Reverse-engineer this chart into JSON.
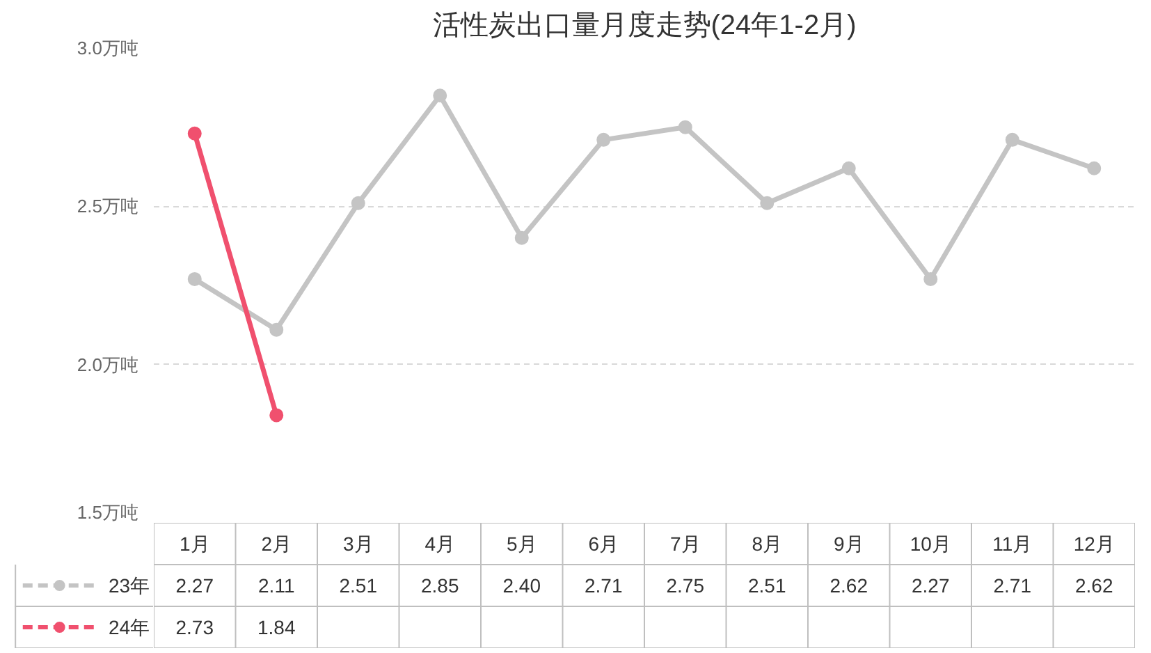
{
  "chart_data": {
    "type": "line",
    "title": "活性炭出口量月度走势(24年1-2月)",
    "categories": [
      "1月",
      "2月",
      "3月",
      "4月",
      "5月",
      "6月",
      "7月",
      "8月",
      "9月",
      "10月",
      "11月",
      "12月"
    ],
    "series": [
      {
        "name": "23年",
        "color": "#c4c4c4",
        "values": [
          2.27,
          2.11,
          2.51,
          2.85,
          2.4,
          2.71,
          2.75,
          2.51,
          2.62,
          2.27,
          2.71,
          2.62
        ],
        "value_labels": [
          "2.27",
          "2.11",
          "2.51",
          "2.85",
          "2.40",
          "2.71",
          "2.75",
          "2.51",
          "2.62",
          "2.27",
          "2.71",
          "2.62"
        ]
      },
      {
        "name": "24年",
        "color": "#f0506e",
        "values": [
          2.73,
          1.84,
          null,
          null,
          null,
          null,
          null,
          null,
          null,
          null,
          null,
          null
        ],
        "value_labels": [
          "2.73",
          "1.84",
          null,
          null,
          null,
          null,
          null,
          null,
          null,
          null,
          null,
          null
        ]
      }
    ],
    "ylim": [
      1.5,
      3.0
    ],
    "yticks": [
      {
        "value": 1.5,
        "label": "1.5万吨"
      },
      {
        "value": 2.0,
        "label": "2.0万吨"
      },
      {
        "value": 2.5,
        "label": "2.5万吨"
      },
      {
        "value": 3.0,
        "label": "3.0万吨"
      }
    ],
    "grid": "y",
    "legend": "bottom",
    "marker": "circle"
  }
}
